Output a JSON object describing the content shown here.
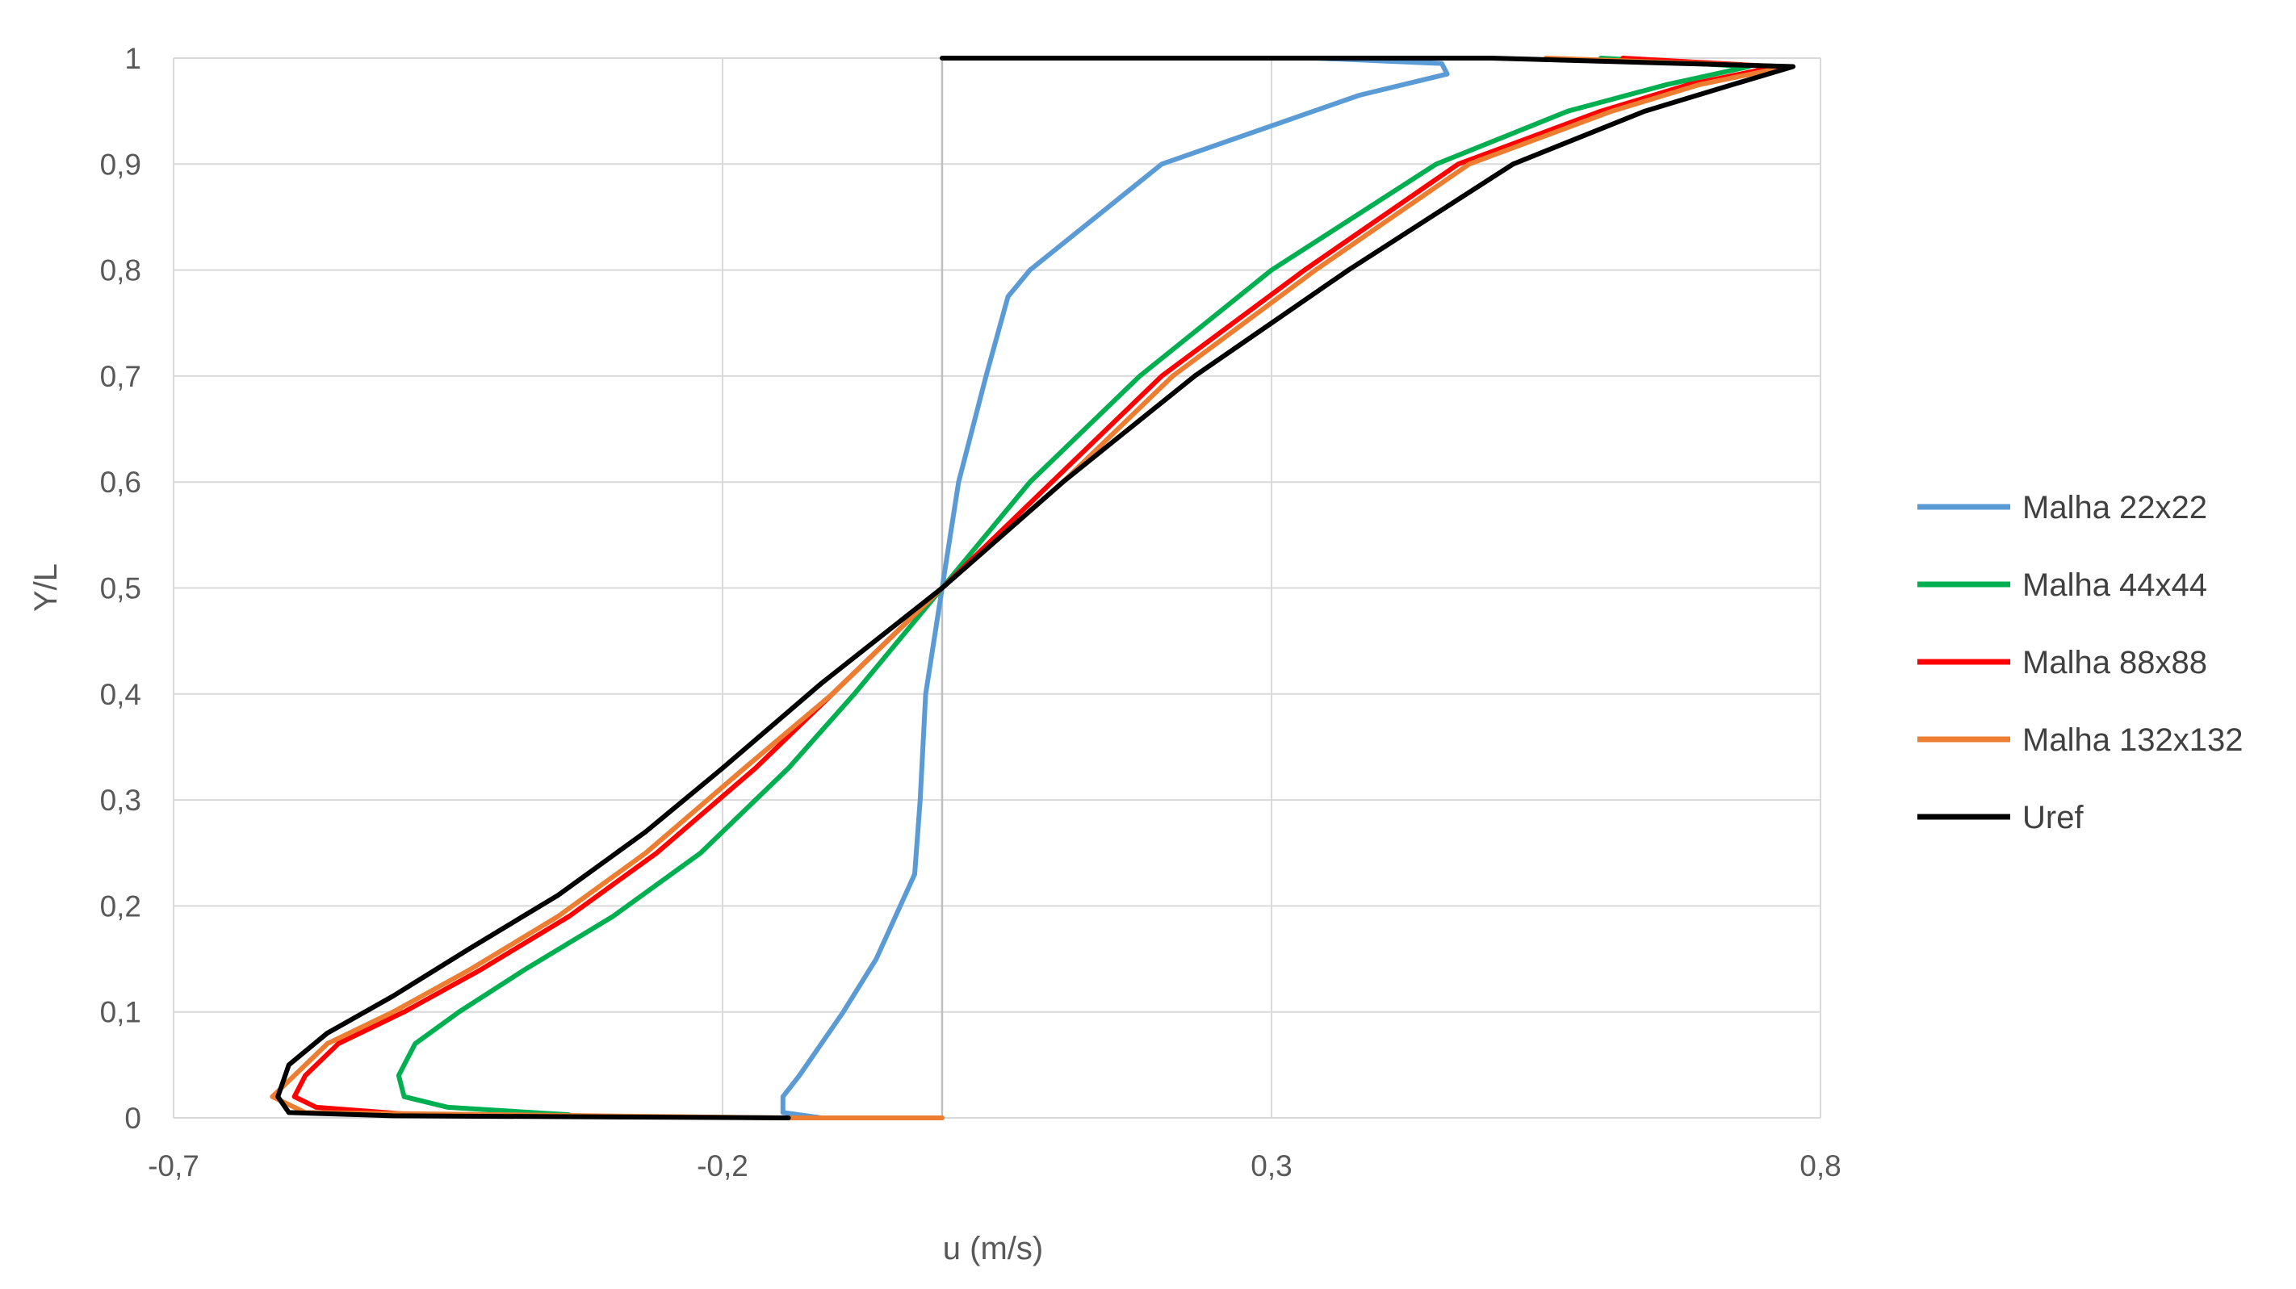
{
  "chart_data": {
    "type": "line",
    "title": "",
    "xlabel": "u (m/s)",
    "ylabel": "Y/L",
    "xlim": [
      -0.7,
      0.8
    ],
    "ylim": [
      0,
      1
    ],
    "x_ticks": [
      "-0,7",
      "-0,2",
      "0,3",
      "0,8"
    ],
    "y_ticks": [
      "0",
      "0,1",
      "0,2",
      "0,3",
      "0,4",
      "0,5",
      "0,6",
      "0,7",
      "0,8",
      "0,9",
      "1"
    ],
    "grid": true,
    "legend_position": "right",
    "series": [
      {
        "name": "Malha 22x22",
        "color": "#5b9bd5",
        "points": [
          [
            0.0,
            0
          ],
          [
            -0.11,
            0
          ],
          [
            -0.145,
            0.005
          ],
          [
            -0.145,
            0.02
          ],
          [
            -0.13,
            0.04
          ],
          [
            -0.09,
            0.1
          ],
          [
            -0.06,
            0.15
          ],
          [
            -0.025,
            0.23
          ],
          [
            -0.02,
            0.3
          ],
          [
            -0.015,
            0.4
          ],
          [
            0.0,
            0.5
          ],
          [
            0.015,
            0.6
          ],
          [
            0.04,
            0.7
          ],
          [
            0.06,
            0.775
          ],
          [
            0.08,
            0.8
          ],
          [
            0.2,
            0.9
          ],
          [
            0.38,
            0.965
          ],
          [
            0.46,
            0.985
          ],
          [
            0.455,
            0.995
          ],
          [
            0.34,
            1.0
          ]
        ]
      },
      {
        "name": "Malha 44x44",
        "color": "#00b050",
        "points": [
          [
            -0.34,
            0.003
          ],
          [
            -0.45,
            0.01
          ],
          [
            -0.49,
            0.02
          ],
          [
            -0.495,
            0.04
          ],
          [
            -0.48,
            0.07
          ],
          [
            -0.44,
            0.1
          ],
          [
            -0.38,
            0.14
          ],
          [
            -0.3,
            0.19
          ],
          [
            -0.22,
            0.25
          ],
          [
            -0.14,
            0.33
          ],
          [
            -0.08,
            0.4
          ],
          [
            0.0,
            0.5
          ],
          [
            0.08,
            0.6
          ],
          [
            0.18,
            0.7
          ],
          [
            0.3,
            0.8
          ],
          [
            0.45,
            0.9
          ],
          [
            0.57,
            0.95
          ],
          [
            0.66,
            0.975
          ],
          [
            0.735,
            0.992
          ],
          [
            0.6,
            1.0
          ]
        ]
      },
      {
        "name": "Malha 88x88",
        "color": "#ff0000",
        "points": [
          [
            -0.48,
            0.003
          ],
          [
            -0.57,
            0.01
          ],
          [
            -0.59,
            0.02
          ],
          [
            -0.58,
            0.04
          ],
          [
            -0.55,
            0.07
          ],
          [
            -0.49,
            0.1
          ],
          [
            -0.42,
            0.14
          ],
          [
            -0.34,
            0.19
          ],
          [
            -0.26,
            0.25
          ],
          [
            -0.17,
            0.33
          ],
          [
            -0.1,
            0.4
          ],
          [
            0.0,
            0.5
          ],
          [
            0.1,
            0.6
          ],
          [
            0.2,
            0.7
          ],
          [
            0.33,
            0.8
          ],
          [
            0.47,
            0.9
          ],
          [
            0.6,
            0.95
          ],
          [
            0.68,
            0.975
          ],
          [
            0.76,
            0.992
          ],
          [
            0.62,
            1.0
          ]
        ]
      },
      {
        "name": "Malha 132x132",
        "color": "#ed7d31",
        "points": [
          [
            0.0,
            0
          ],
          [
            -0.15,
            0
          ],
          [
            -0.58,
            0.005
          ],
          [
            -0.61,
            0.02
          ],
          [
            -0.59,
            0.04
          ],
          [
            -0.56,
            0.07
          ],
          [
            -0.5,
            0.1
          ],
          [
            -0.43,
            0.14
          ],
          [
            -0.35,
            0.19
          ],
          [
            -0.27,
            0.25
          ],
          [
            -0.18,
            0.33
          ],
          [
            -0.1,
            0.4
          ],
          [
            0.0,
            0.5
          ],
          [
            0.11,
            0.6
          ],
          [
            0.21,
            0.7
          ],
          [
            0.34,
            0.8
          ],
          [
            0.48,
            0.9
          ],
          [
            0.61,
            0.95
          ],
          [
            0.69,
            0.975
          ],
          [
            0.77,
            0.992
          ],
          [
            0.55,
            1.0
          ]
        ]
      },
      {
        "name": "Uref",
        "color": "#000000",
        "points": [
          [
            -0.14,
            0
          ],
          [
            -0.5,
            0.002
          ],
          [
            -0.595,
            0.005
          ],
          [
            -0.605,
            0.02
          ],
          [
            -0.595,
            0.05
          ],
          [
            -0.56,
            0.08
          ],
          [
            -0.5,
            0.115
          ],
          [
            -0.43,
            0.16
          ],
          [
            -0.35,
            0.21
          ],
          [
            -0.27,
            0.27
          ],
          [
            -0.2,
            0.33
          ],
          [
            -0.11,
            0.41
          ],
          [
            0.0,
            0.5
          ],
          [
            0.11,
            0.6
          ],
          [
            0.23,
            0.7
          ],
          [
            0.37,
            0.8
          ],
          [
            0.52,
            0.9
          ],
          [
            0.64,
            0.95
          ],
          [
            0.72,
            0.975
          ],
          [
            0.775,
            0.992
          ],
          [
            0.5,
            1.0
          ],
          [
            0.0,
            1.0
          ]
        ]
      }
    ]
  }
}
